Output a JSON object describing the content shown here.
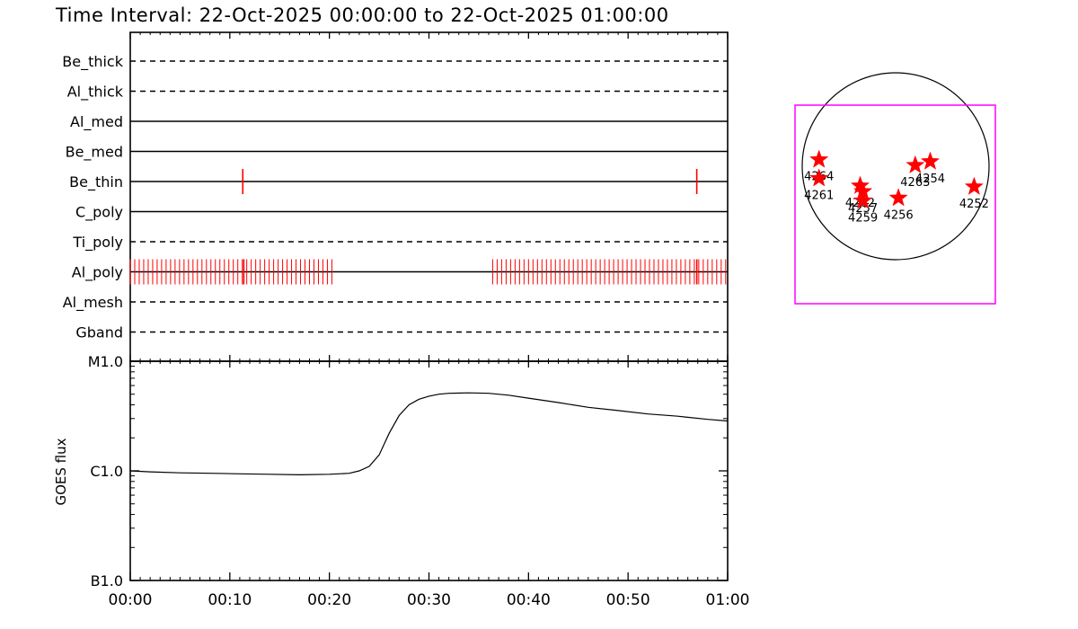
{
  "title": "Time Interval: 22-Oct-2025 00:00:00 to 22-Oct-2025 01:00:00",
  "colors": {
    "axis": "#000000",
    "marker": "#ff0000",
    "fov_box": "#ff00ff",
    "background": "#ffffff"
  },
  "chart_data": [
    {
      "type": "line",
      "name": "filter-timeline",
      "x_range_minutes": [
        0,
        60
      ],
      "tick_labels": [
        "00:00",
        "00:10",
        "00:20",
        "00:30",
        "00:40",
        "00:50",
        "01:00"
      ],
      "channels": [
        {
          "label": "Be_thick",
          "style": "dashed",
          "events": []
        },
        {
          "label": "Al_thick",
          "style": "dashed",
          "events": []
        },
        {
          "label": "Al_med",
          "style": "solid",
          "events": []
        },
        {
          "label": "Be_med",
          "style": "solid",
          "events": []
        },
        {
          "label": "Be_thin",
          "style": "solid",
          "events": [
            11.3,
            56.9
          ]
        },
        {
          "label": "C_poly",
          "style": "solid",
          "events": []
        },
        {
          "label": "Ti_poly",
          "style": "dashed",
          "events": []
        },
        {
          "label": "Al_poly",
          "style": "solid",
          "event_ranges": [
            [
              0.0,
              20.6,
              0.45
            ],
            [
              36.4,
              59.8,
              0.45
            ]
          ],
          "events": [
            11.4,
            56.9
          ]
        },
        {
          "label": "Al_mesh",
          "style": "dashed",
          "events": []
        },
        {
          "label": "Gband",
          "style": "dashed",
          "events": []
        }
      ]
    },
    {
      "type": "line",
      "name": "goes-flux",
      "ylabel": "GOES flux",
      "y_scale": "log",
      "y_ticks": [
        "B1.0",
        "C1.0",
        "M1.0"
      ],
      "y_range": [
        "B1.0",
        "M1.0"
      ],
      "x_range_minutes": [
        0,
        60
      ],
      "tick_labels": [
        "00:00",
        "00:10",
        "00:20",
        "00:30",
        "00:40",
        "00:50",
        "01:00"
      ],
      "series": [
        {
          "x_minutes": [
            0,
            2,
            5,
            8,
            11,
            14,
            17,
            20,
            22,
            23,
            24,
            25,
            26,
            27,
            28,
            29,
            30,
            31,
            32,
            34,
            36,
            38,
            40,
            43,
            46,
            49,
            52,
            55,
            58,
            60
          ],
          "y": [
            "1.0e-6",
            "9.8e-7",
            "9.6e-7",
            "9.5e-7",
            "9.4e-7",
            "9.3e-7",
            "9.2e-7",
            "9.3e-7",
            "9.5e-7",
            "1.0e-6",
            "1.1e-6",
            "1.4e-6",
            "2.2e-6",
            "3.2e-6",
            "4.0e-6",
            "4.5e-6",
            "4.8e-6",
            "5.0e-6",
            "5.1e-6",
            "5.15e-6",
            "5.1e-6",
            "4.9e-6",
            "4.6e-6",
            "4.2e-6",
            "3.8e-6",
            "3.55e-6",
            "3.3e-6",
            "3.15e-6",
            "2.95e-6",
            "2.85e-6"
          ]
        }
      ]
    },
    {
      "type": "scatter",
      "name": "solar-disk-map",
      "points": [
        {
          "label": "4264",
          "x": -0.82,
          "y": 0.07
        },
        {
          "label": "4261",
          "x": -0.82,
          "y": -0.13
        },
        {
          "label": "4262",
          "x": -0.38,
          "y": -0.21
        },
        {
          "label": "4257",
          "x": -0.35,
          "y": -0.27
        },
        {
          "label": "4259",
          "x": -0.35,
          "y": -0.37
        },
        {
          "label": "4256",
          "x": 0.03,
          "y": -0.34
        },
        {
          "label": "4263",
          "x": 0.21,
          "y": 0.01
        },
        {
          "label": "4254",
          "x": 0.37,
          "y": 0.05
        },
        {
          "label": "4252",
          "x": 0.84,
          "y": -0.22
        }
      ]
    }
  ]
}
